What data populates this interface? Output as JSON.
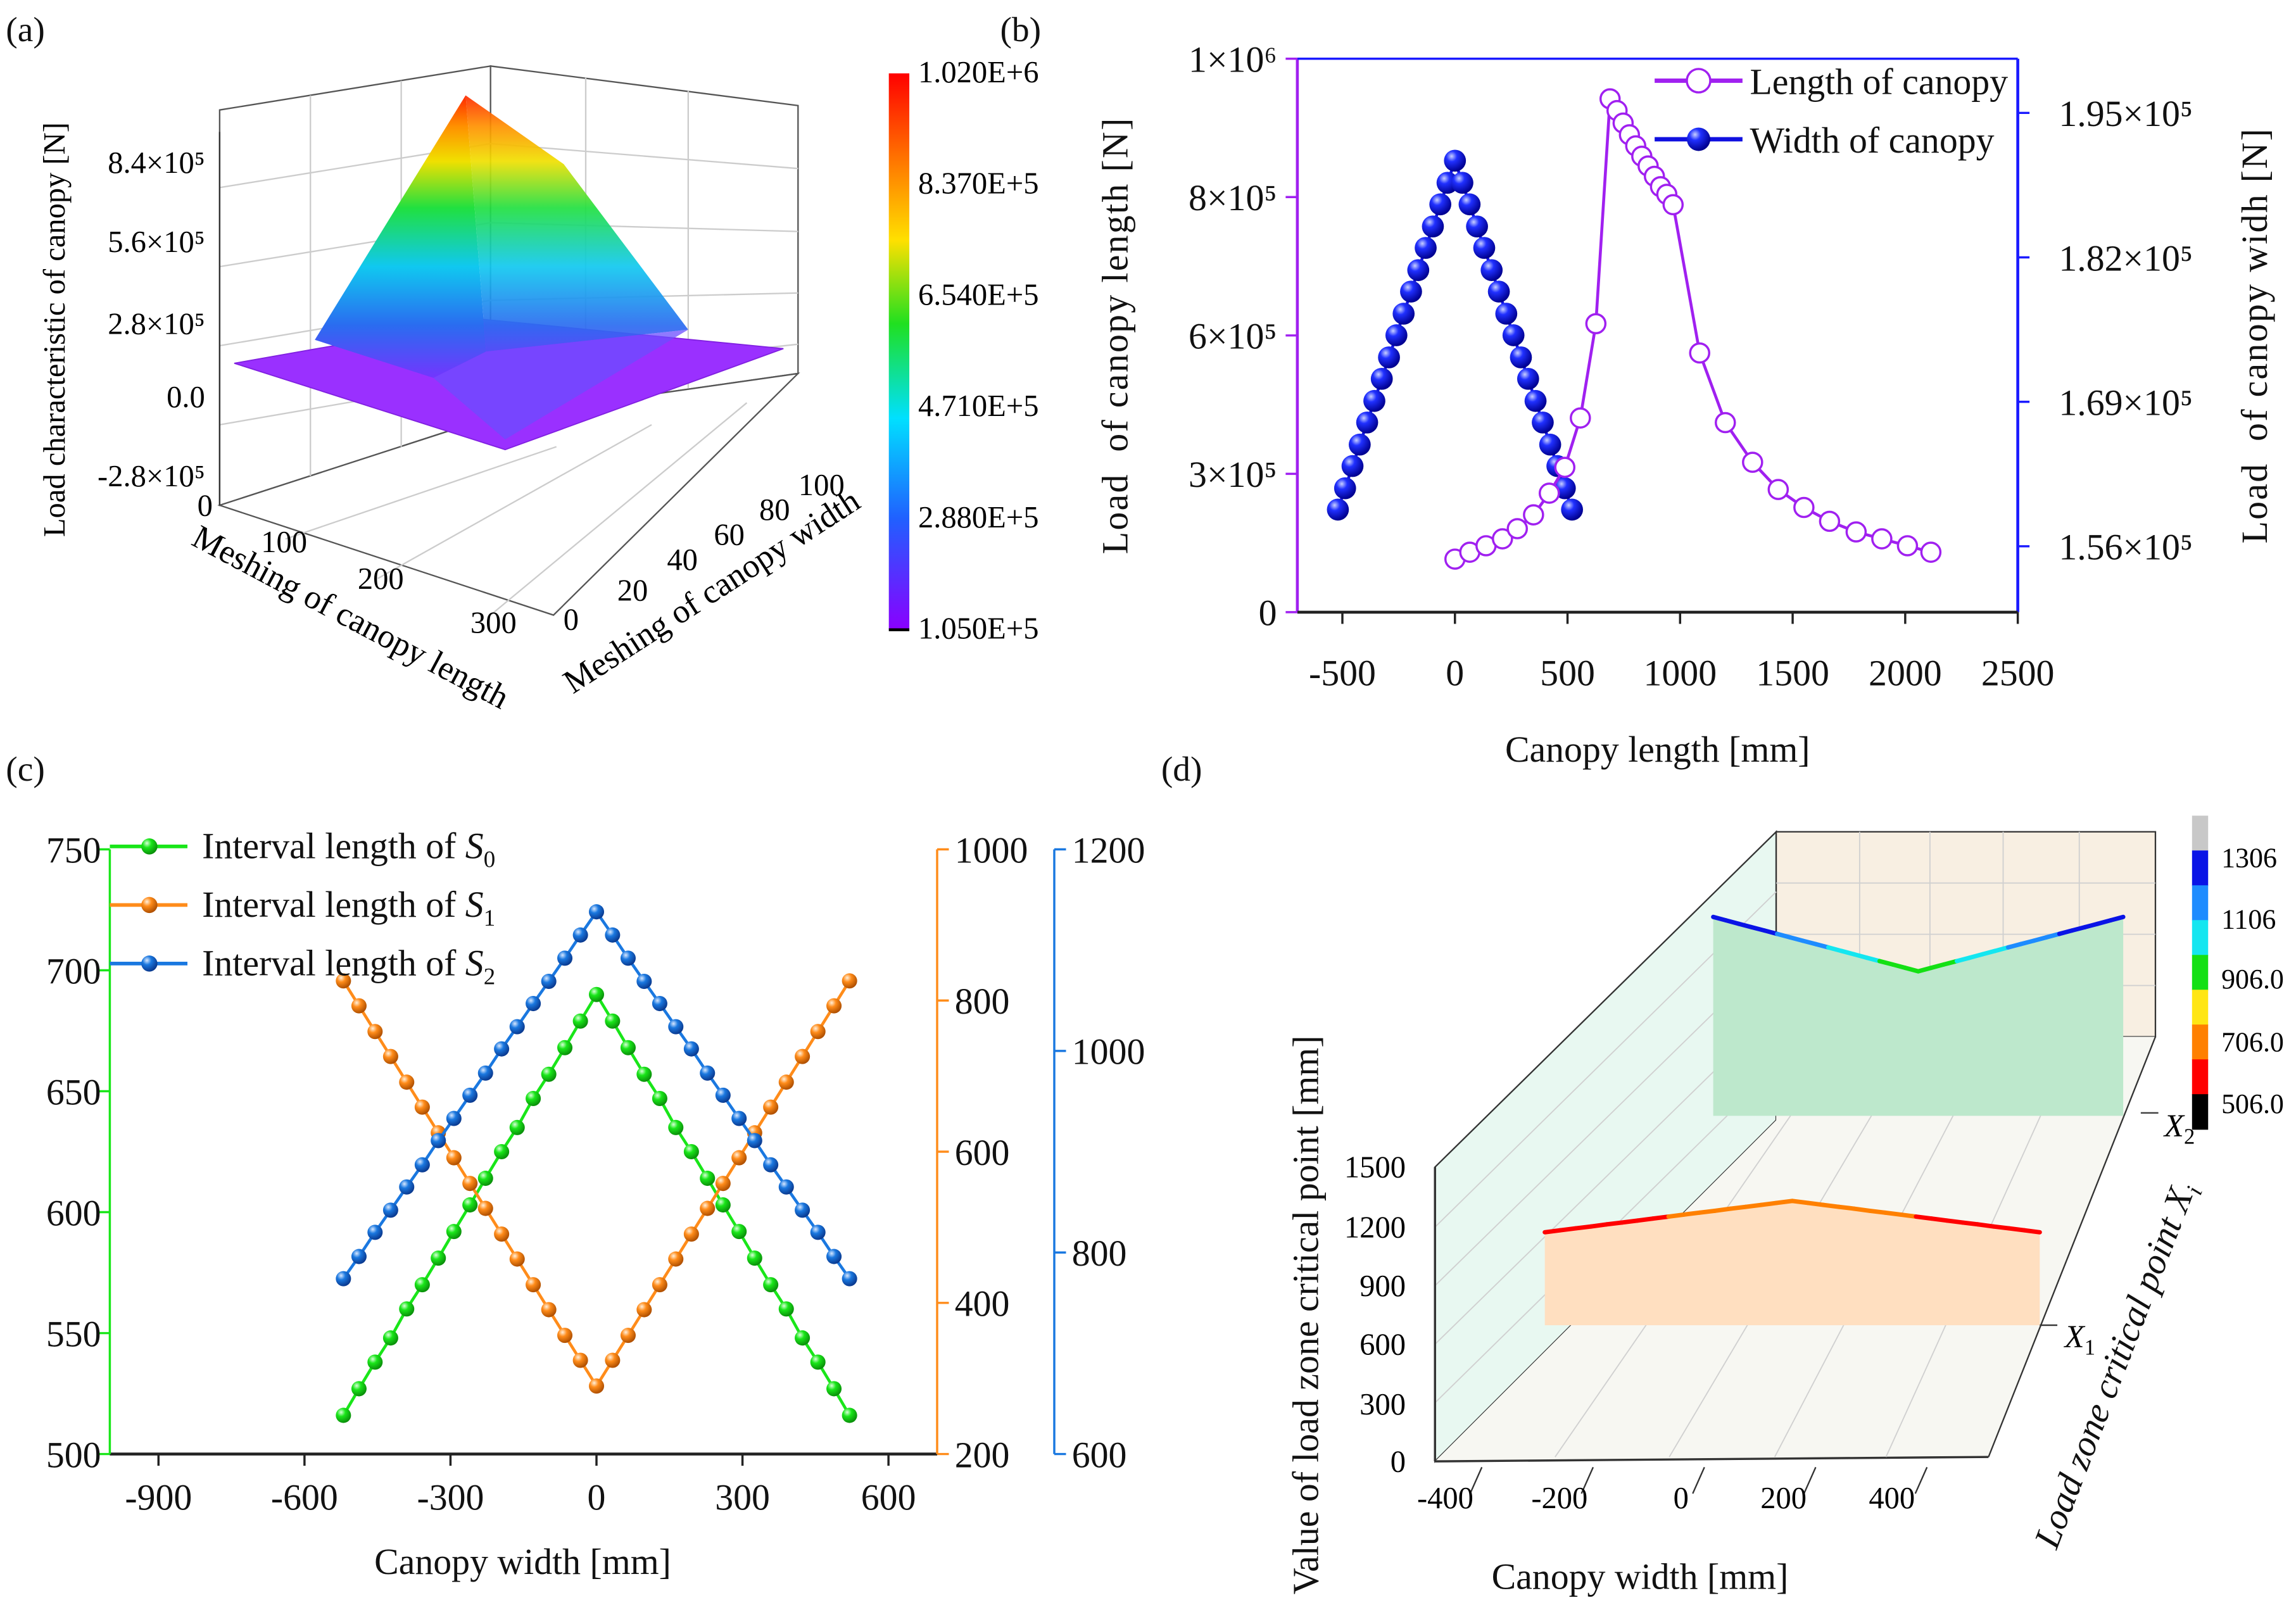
{
  "panel_labels": {
    "a": "(a)",
    "b": "(b)",
    "c": "(c)",
    "d": "(d)"
  },
  "chart_data": [
    {
      "panel": "a",
      "type": "surface",
      "zlabel": "Load characteristic of canopy [N]",
      "xlabel": "Meshing of canopy length",
      "ylabel": "Meshing of canopy width",
      "xticks": [
        "0",
        "100",
        "200",
        "300"
      ],
      "yticks": [
        "0",
        "20",
        "40",
        "60",
        "80",
        "100"
      ],
      "zticks": [
        "8.4×10⁵",
        "5.6×10⁵",
        "2.8×10⁵",
        "0.0",
        "-2.8×10⁵"
      ],
      "colorbar": {
        "range": [
          105000,
          1020000
        ],
        "ticks": [
          "1.020E+6",
          "8.370E+5",
          "6.540E+5",
          "4.710E+5",
          "2.880E+5",
          "1.050E+5"
        ],
        "colors": [
          "#ff0000",
          "#ff8000",
          "#ffe000",
          "#20e020",
          "#00e0ff",
          "#2060ff",
          "#8a00ff"
        ]
      }
    },
    {
      "panel": "b",
      "type": "line",
      "xlabel": "Canopy length [mm]",
      "ylabel_left": "Load  of canopy length [N]",
      "ylabel_right": "Load  of canopy widh [N]",
      "xlim": [
        -700,
        2500
      ],
      "xticks": [
        -500,
        0,
        500,
        1000,
        1500,
        2000,
        2500
      ],
      "xtick_labels": [
        "-500",
        "0",
        "500",
        "1000",
        "1500",
        "2000",
        "2500"
      ],
      "yticks_left": [
        0,
        300000,
        600000,
        800000,
        1000000
      ],
      "yticks_left_labels": [
        "0",
        "3×10⁵",
        "6×10⁵",
        "8×10⁵",
        "1×10⁶"
      ],
      "yticks_right": [
        156000,
        169000,
        182000,
        195000
      ],
      "yticks_right_labels": [
        "1.56×10⁵",
        "1.69×10⁵",
        "1.82×10⁵",
        "1.95×10⁵"
      ],
      "legend_position": "top-right",
      "colors": {
        "left_axis": "#a020f0",
        "right_axis": "#1a1aff",
        "length": "#a020f0",
        "width": "#1010e0"
      },
      "series": [
        {
          "name": "Length of canopy",
          "axis": "left",
          "marker": "open-circle",
          "x": [
            0,
            66,
            138,
            211,
            277,
            349,
            419,
            488,
            557,
            626,
            689,
            720,
            747,
            775,
            803,
            830,
            858,
            886,
            913,
            941,
            969,
            1087,
            1201,
            1322,
            1436,
            1550,
            1664,
            1782,
            1896,
            2010,
            2114
          ],
          "y": [
            115000,
            130000,
            144000,
            159000,
            181000,
            211000,
            258000,
            314000,
            421000,
            617000,
            942000,
            925000,
            907000,
            890000,
            874000,
            859000,
            845000,
            830000,
            815000,
            804000,
            789000,
            562000,
            411000,
            325000,
            266000,
            227000,
            197000,
            174000,
            159000,
            144000,
            130000
          ]
        },
        {
          "name": "Width of canopy",
          "axis": "right",
          "marker": "filled-sphere",
          "x": [
            -520,
            -488,
            -455,
            -423,
            -390,
            -358,
            -325,
            -293,
            -260,
            -228,
            -195,
            -163,
            -130,
            -98,
            -65,
            -33,
            0,
            33,
            65,
            98,
            130,
            163,
            195,
            228,
            260,
            293,
            325,
            358,
            390,
            423,
            455,
            488,
            520
          ],
          "y": [
            159300,
            161220,
            163220,
            165150,
            167140,
            169080,
            171070,
            173000,
            174990,
            176930,
            178920,
            180850,
            182850,
            184780,
            186770,
            188710,
            190700,
            188710,
            186770,
            184780,
            182850,
            180850,
            178920,
            176930,
            174990,
            173000,
            171070,
            169080,
            167140,
            165150,
            163220,
            161220,
            159300
          ]
        }
      ]
    },
    {
      "panel": "c",
      "type": "line",
      "xlabel": "Canopy width [mm]",
      "xlim": [
        -1000,
        700
      ],
      "xticks": [
        -900,
        -600,
        -300,
        0,
        300,
        600
      ],
      "xtick_labels": [
        "-900",
        "-600",
        "-300",
        "0",
        "300",
        "600"
      ],
      "axes": [
        {
          "name": "S0",
          "color": "#19e619",
          "ylim": [
            500,
            750
          ],
          "ticks": [
            500,
            550,
            600,
            650,
            700,
            750
          ],
          "labels": [
            "500",
            "550",
            "600",
            "650",
            "700",
            "750"
          ]
        },
        {
          "name": "S1",
          "color": "#ff8c1a",
          "ylim": [
            200,
            1000
          ],
          "ticks": [
            200,
            400,
            600,
            800,
            1000
          ],
          "labels": [
            "200",
            "400",
            "600",
            "800",
            "1000"
          ]
        },
        {
          "name": "S2",
          "color": "#1a78e0",
          "ylim": [
            600,
            1200
          ],
          "ticks": [
            600,
            800,
            1000,
            1200
          ],
          "labels": [
            "600",
            "800",
            "1000",
            "1200"
          ]
        }
      ],
      "legend_position": "top-left",
      "x": [
        -520,
        -488,
        -455,
        -423,
        -390,
        -358,
        -325,
        -293,
        -260,
        -228,
        -195,
        -163,
        -130,
        -98,
        -65,
        -33,
        0,
        33,
        65,
        98,
        130,
        163,
        195,
        228,
        260,
        293,
        325,
        358,
        390,
        423,
        455,
        488,
        520
      ],
      "series": [
        {
          "label": {
            "text": "Interval length of ",
            "var": "S",
            "sub": "0"
          },
          "axis": 0,
          "values": [
            516,
            527,
            538,
            548,
            560,
            570,
            581,
            592,
            603,
            614,
            625,
            635,
            647,
            657,
            668,
            679,
            690,
            679,
            668,
            657,
            647,
            635,
            625,
            614,
            603,
            592,
            581,
            570,
            560,
            548,
            538,
            527,
            516
          ]
        },
        {
          "label": {
            "text": "Interval length of ",
            "var": "S",
            "sub": "1"
          },
          "axis": 1,
          "values": [
            826,
            793,
            759,
            726,
            692,
            659,
            625,
            592,
            558,
            525,
            491,
            458,
            424,
            391,
            357,
            324,
            290,
            324,
            357,
            391,
            424,
            458,
            491,
            525,
            558,
            592,
            625,
            659,
            692,
            726,
            759,
            793,
            826
          ]
        },
        {
          "label": {
            "text": "Interval length of ",
            "var": "S",
            "sub": "2"
          },
          "axis": 2,
          "values": [
            774,
            796,
            820,
            842,
            865,
            887,
            911,
            933,
            956,
            978,
            1002,
            1024,
            1047,
            1069,
            1092,
            1115,
            1138,
            1115,
            1092,
            1069,
            1047,
            1024,
            1002,
            978,
            956,
            933,
            911,
            887,
            865,
            842,
            820,
            796,
            774
          ]
        }
      ]
    },
    {
      "panel": "d",
      "type": "line3d",
      "xlabel": "Canopy width [mm]",
      "zlabel": "Value of load zone critical point [mm]",
      "ylabel": {
        "text": "Load zone critical point ",
        "var": "X",
        "sub": "i"
      },
      "xticks": [
        "-400",
        "-200",
        "0",
        "200",
        "400"
      ],
      "zticks": [
        "0",
        "300",
        "600",
        "900",
        "1200",
        "1500"
      ],
      "categories": [
        {
          "var": "X",
          "sub": "1"
        },
        {
          "var": "X",
          "sub": "2"
        }
      ],
      "x": [
        -520,
        -488,
        -455,
        -423,
        -390,
        -358,
        -325,
        -293,
        -260,
        -228,
        -195,
        -163,
        -130,
        -98,
        -65,
        -33,
        0,
        33,
        65,
        98,
        130,
        163,
        195,
        228,
        260,
        293,
        325,
        358,
        390,
        423,
        455,
        488,
        520
      ],
      "series": [
        {
          "name": "X1",
          "fill": "#ffdfc0",
          "values": [
            516,
            527,
            538,
            548,
            560,
            570,
            581,
            592,
            603,
            614,
            625,
            635,
            647,
            657,
            668,
            679,
            690,
            679,
            668,
            657,
            647,
            635,
            625,
            614,
            603,
            592,
            581,
            570,
            560,
            548,
            538,
            527,
            516
          ]
        },
        {
          "name": "X2",
          "fill": "#bde8cc",
          "values": [
            1306,
            1284,
            1261,
            1239,
            1217,
            1195,
            1172,
            1150,
            1128,
            1106,
            1083,
            1061,
            1038,
            1016,
            994,
            972,
            949,
            972,
            994,
            1016,
            1038,
            1061,
            1083,
            1106,
            1128,
            1150,
            1172,
            1195,
            1217,
            1239,
            1261,
            1284,
            1306
          ]
        }
      ],
      "colorbar": {
        "ticks": [
          "1306",
          "1106",
          "906.0",
          "706.0",
          "506.0"
        ],
        "bands": [
          {
            "min": 1326,
            "color": "#c8c8c8"
          },
          {
            "min": 1206,
            "color": "#0a14e6"
          },
          {
            "min": 1106,
            "color": "#1e8cff"
          },
          {
            "min": 1006,
            "color": "#14e6f0"
          },
          {
            "min": 806,
            "color": "#14e014"
          },
          {
            "min": 706,
            "color": "#ffe614"
          },
          {
            "min": 606,
            "color": "#ff8000"
          },
          {
            "min": 506,
            "color": "#ff0000"
          },
          {
            "min": 0,
            "color": "#000000"
          }
        ]
      }
    }
  ]
}
